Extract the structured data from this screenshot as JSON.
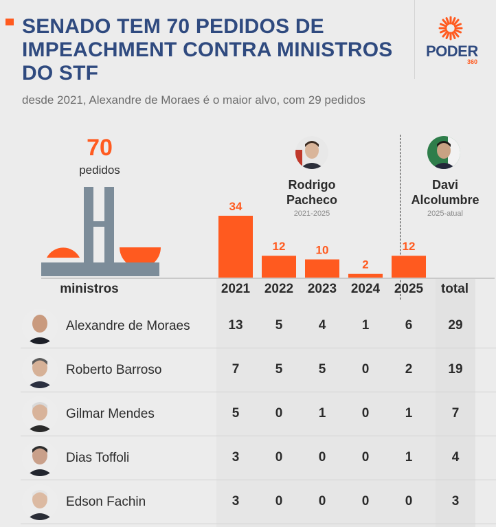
{
  "header": {
    "title": "SENADO TEM 70 PEDIDOS DE IMPEACHMENT CONTRA MINISTROS DO STF",
    "subtitle": "desde 2021, Alexandre de Moraes é o maior alvo, com 29 pedidos"
  },
  "logo": {
    "word": "PODER",
    "sub": "360"
  },
  "total": {
    "value": "70",
    "label": "pedidos"
  },
  "presidents": [
    {
      "name": "Rodrigo Pacheco",
      "period": "2021-2025"
    },
    {
      "name": "Davi Alcolumbre",
      "period": "2025-atual"
    }
  ],
  "colors": {
    "accent": "#ff5a1f",
    "title": "#2f4a7f",
    "building": "#7c8c99"
  },
  "chart_data": {
    "type": "bar",
    "categories": [
      "2021",
      "2022",
      "2023",
      "2024",
      "2025"
    ],
    "values": [
      34,
      12,
      10,
      2,
      12
    ],
    "title": "",
    "xlabel": "",
    "ylabel": ""
  },
  "table": {
    "name_header": "ministros",
    "total_header": "total",
    "rows": [
      {
        "name": "Alexandre de Moraes",
        "values": [
          "13",
          "5",
          "4",
          "1",
          "6"
        ],
        "total": "29"
      },
      {
        "name": "Roberto Barroso",
        "values": [
          "7",
          "5",
          "5",
          "0",
          "2"
        ],
        "total": "19"
      },
      {
        "name": "Gilmar Mendes",
        "values": [
          "5",
          "0",
          "1",
          "0",
          "1"
        ],
        "total": "7"
      },
      {
        "name": "Dias Toffoli",
        "values": [
          "3",
          "0",
          "0",
          "0",
          "1"
        ],
        "total": "4"
      },
      {
        "name": "Edson Fachin",
        "values": [
          "3",
          "0",
          "0",
          "0",
          "0"
        ],
        "total": "3"
      }
    ]
  }
}
